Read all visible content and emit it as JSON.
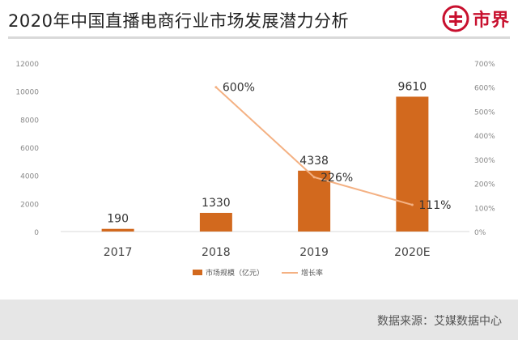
{
  "header": {
    "title": "2020年中国直播电商行业市场发展潜力分析",
    "logo_text": "市界"
  },
  "footer": {
    "source": "数据来源：艾媒数据中心"
  },
  "colors": {
    "bar": "#d2691e",
    "line": "#f4b183",
    "logo": "#c8102e"
  },
  "chart_data": {
    "type": "bar",
    "categories": [
      "2017",
      "2018",
      "2019",
      "2020E"
    ],
    "series": [
      {
        "name": "市场规模（亿元）",
        "type": "bar",
        "axis": "left",
        "values": [
          190,
          1330,
          4338,
          9610
        ],
        "labels": [
          "190",
          "1330",
          "4338",
          "9610"
        ]
      },
      {
        "name": "增长率",
        "type": "line",
        "axis": "right",
        "values": [
          null,
          600,
          226,
          111
        ],
        "labels": [
          "",
          "600%",
          "226%",
          "111%"
        ]
      }
    ],
    "y_left": {
      "min": 0,
      "max": 12000,
      "ticks": [
        "0",
        "2000",
        "4000",
        "6000",
        "8000",
        "10000",
        "12000"
      ]
    },
    "y_right": {
      "min": 0,
      "max": 700,
      "ticks": [
        "0%",
        "100%",
        "200%",
        "300%",
        "400%",
        "500%",
        "600%",
        "700%"
      ]
    },
    "grid": false,
    "legend_position": "bottom"
  }
}
